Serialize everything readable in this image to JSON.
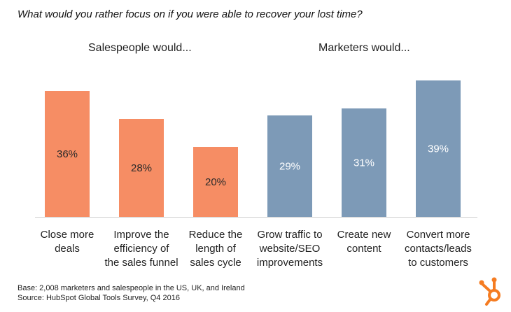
{
  "chart_data": {
    "type": "bar",
    "title": "What would you rather focus on if you were able to recover your lost time?",
    "groups": [
      {
        "label": "Salespeople would...",
        "color": "#F68D64",
        "value_text_color": "#2a2a2a"
      },
      {
        "label": "Marketers would...",
        "color": "#7D9AB7",
        "value_text_color": "#ffffff"
      }
    ],
    "categories": [
      {
        "lines": [
          "Close more",
          "deals"
        ],
        "group": 0
      },
      {
        "lines": [
          "Improve the",
          "efficiency of",
          "the sales funnel"
        ],
        "group": 0
      },
      {
        "lines": [
          "Reduce the",
          "length of",
          "sales cycle"
        ],
        "group": 0
      },
      {
        "lines": [
          "Grow traffic to",
          "website/SEO",
          "improvements"
        ],
        "group": 1
      },
      {
        "lines": [
          "Create new",
          "content"
        ],
        "group": 1
      },
      {
        "lines": [
          "Convert more",
          "contacts/leads",
          "to customers"
        ],
        "group": 1
      }
    ],
    "values": [
      36,
      28,
      20,
      29,
      31,
      39
    ],
    "value_labels": [
      "36%",
      "28%",
      "20%",
      "29%",
      "31%",
      "39%"
    ],
    "unit": "%",
    "ylim": [
      0,
      40
    ],
    "grid": false
  },
  "footer": {
    "base": "Base: 2,008 marketers and salespeople in the US, UK, and Ireland",
    "source": "Source: HubSpot Global Tools Survey, Q4 2016"
  },
  "logo": {
    "name": "hubspot-sprocket-logo",
    "color": "#F57C22"
  }
}
